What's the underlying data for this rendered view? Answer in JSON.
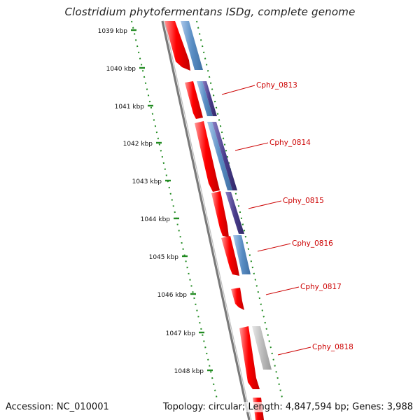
{
  "title": "Clostridium phytofermentans ISDg, complete genome",
  "footer": {
    "accession": "Accession: NC_010001",
    "summary": "Topology: circular; Length: 4,847,594 bp; Genes: 3,988"
  },
  "colors": {
    "cds": "#ff0000",
    "gene_light_blue": "#6f9fd0",
    "gene_dark_purple": "#4a3d8c",
    "gene_gray": "#bdbdbd",
    "label": "#cc0000",
    "backbone": "#808080",
    "ruler": "#228b22"
  },
  "ruler": {
    "labels": [
      "1039 kbp",
      "1040 kbp",
      "1041 kbp",
      "1042 kbp",
      "1043 kbp",
      "1044 kbp",
      "1045 kbp",
      "1046 kbp",
      "1047 kbp",
      "1048 kbp"
    ]
  },
  "genes": [
    "Cphy_0813",
    "Cphy_0814",
    "Cphy_0815",
    "Cphy_0816",
    "Cphy_0817",
    "Cphy_0818"
  ]
}
